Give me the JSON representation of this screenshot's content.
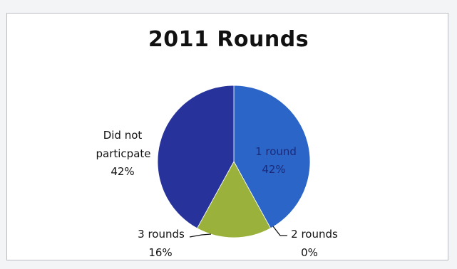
{
  "chart_data": {
    "type": "pie",
    "title": "2011 Rounds",
    "slices": [
      {
        "label": "1 round",
        "value": 42,
        "percent_label": "42%",
        "color": "#2a65c7",
        "label_color": "#1d2a7a"
      },
      {
        "label": "2 rounds",
        "value": 0,
        "percent_label": "0%",
        "color": "#2a65c7",
        "label_color": "#111111"
      },
      {
        "label": "3 rounds",
        "value": 16,
        "percent_label": "16%",
        "color": "#9ab13c",
        "label_color": "#111111"
      },
      {
        "label": "Did not particpate",
        "value": 42,
        "percent_label": "42%",
        "color": "#27339a",
        "label_color": "#111111"
      }
    ],
    "legend": "none"
  }
}
